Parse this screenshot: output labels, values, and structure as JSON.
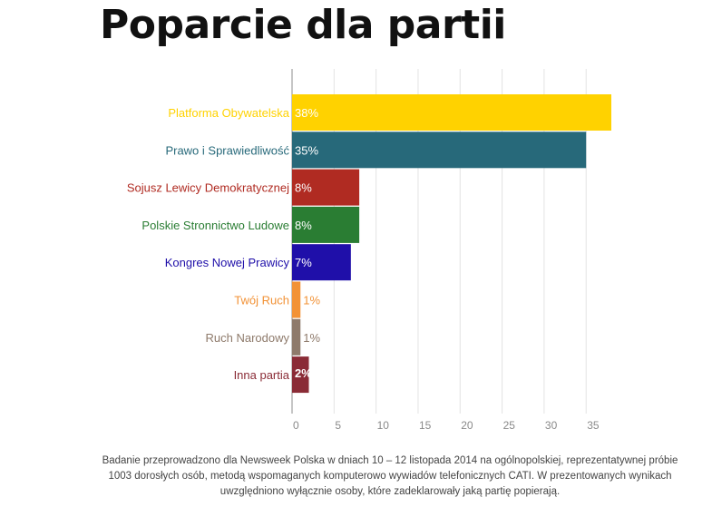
{
  "title": "Poparcie dla partii",
  "note": "Badanie przeprowadzono dla Newsweek Polska w dniach 10 – 12 listopada 2014 na ogólnopolskiej, reprezentatywnej próbie 1003 dorosłych osób, metodą wspomaganych komputerowo wywiadów telefonicznych CATI. W prezentowanych wynikach uwzględniono wyłącznie osoby, które zadeklarowały jaką partię popierają.",
  "chart_data": {
    "type": "bar",
    "orientation": "horizontal",
    "title": "Poparcie dla partii",
    "categories": [
      "Platforma Obywatelska",
      "Prawo i Sprawiedliwość",
      "Sojusz Lewicy Demokratycznej",
      "Polskie Stronnictwo Ludowe",
      "Kongres Nowej Prawicy",
      "Twój Ruch",
      "Ruch Narodowy",
      "Inna partia"
    ],
    "values": [
      38,
      35,
      8,
      8,
      7,
      1,
      1,
      2
    ],
    "value_labels": [
      "38%",
      "35%",
      "8%",
      "8%",
      "7%",
      "1%",
      "1%",
      "2%"
    ],
    "colors": [
      "#ffd200",
      "#27697a",
      "#b02b22",
      "#2a7d33",
      "#1f0fa9",
      "#f29236",
      "#8e7a6b",
      "#8a2b36"
    ],
    "xlim": [
      0,
      38
    ],
    "xticks": [
      0,
      5,
      10,
      15,
      20,
      25,
      30,
      35
    ],
    "grid": true,
    "xlabel": "",
    "ylabel": ""
  }
}
